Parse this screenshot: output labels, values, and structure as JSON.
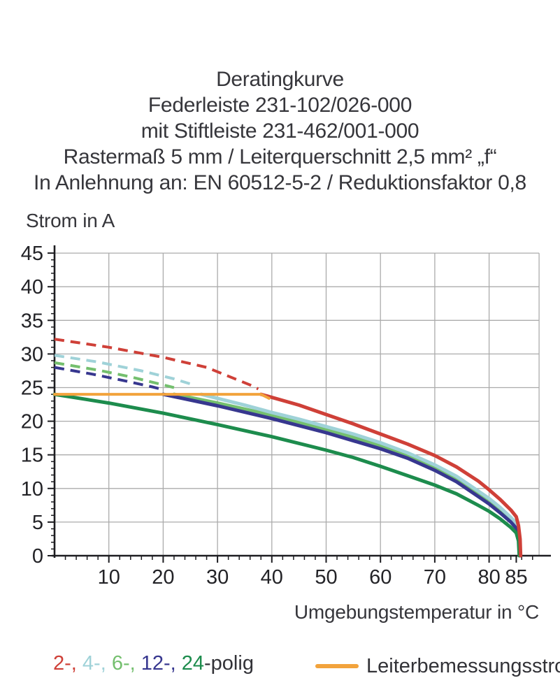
{
  "header": {
    "title_lines": [
      "Deratingkurve",
      "Federleiste 231-102/026-000",
      "mit Stiftleiste 231-462/001-000",
      "Rastermaß 5 mm / Leiterquerschnitt 2,5 mm² „f“",
      "In Anlehnung an: EN 60512-5-2 / Reduktionsfaktor 0,8"
    ]
  },
  "legend": {
    "poles": [
      {
        "text": "2-, ",
        "color": "#cf4038"
      },
      {
        "text": "4-, ",
        "color": "#9fd2d8"
      },
      {
        "text": "6-, ",
        "color": "#74bf6e"
      },
      {
        "text": "12-, ",
        "color": "#37378f"
      },
      {
        "text": "24",
        "color": "#1d8c4d"
      }
    ],
    "poles_suffix": "-polig",
    "rated_current": {
      "label": "Leiterbemessungsstrom",
      "color": "#f2a33c"
    }
  },
  "chart_data": {
    "type": "line",
    "title": "Deratingkurve",
    "xlabel": "Umgebungstemperatur in °C",
    "ylabel": "Strom in A",
    "xlim": [
      0,
      89.2
    ],
    "ylim": [
      0,
      45
    ],
    "x_ticks_major": [
      10,
      20,
      30,
      40,
      50,
      60,
      70,
      80,
      85
    ],
    "x_gridlines": [
      10,
      20,
      30,
      40,
      50,
      60,
      70,
      80
    ],
    "y_ticks_major": [
      0,
      5,
      10,
      15,
      20,
      25,
      30,
      35,
      40,
      45
    ],
    "y_gridlines": [
      5,
      10,
      15,
      20,
      25,
      30,
      35,
      40,
      45
    ],
    "grid": true,
    "legend_position": "bottom",
    "style": {
      "grid_color": "#ababab",
      "axis_color": "#1d1d21"
    },
    "series": [
      {
        "name": "2-polig-unreduziert",
        "color": "#cf4038",
        "dashed": true,
        "width": 4,
        "points": [
          [
            0,
            32.2
          ],
          [
            10,
            31.0
          ],
          [
            20,
            29.5
          ],
          [
            28,
            28.0
          ],
          [
            36,
            25.4
          ],
          [
            37.5,
            24.8
          ]
        ]
      },
      {
        "name": "4-polig-unreduziert",
        "color": "#9fd2d8",
        "dashed": true,
        "width": 4,
        "points": [
          [
            0,
            29.8
          ],
          [
            8,
            28.8
          ],
          [
            16,
            27.5
          ],
          [
            22,
            26.3
          ],
          [
            26,
            25.3
          ]
        ]
      },
      {
        "name": "6-polig-unreduziert",
        "color": "#74bf6e",
        "dashed": true,
        "width": 4,
        "points": [
          [
            0,
            28.7
          ],
          [
            8,
            27.6
          ],
          [
            14,
            26.6
          ],
          [
            19,
            25.6
          ],
          [
            22,
            25.0
          ]
        ]
      },
      {
        "name": "12-polig-unreduziert",
        "color": "#37378f",
        "dashed": true,
        "width": 4,
        "points": [
          [
            0,
            28.0
          ],
          [
            7,
            27.0
          ],
          [
            13,
            26.0
          ],
          [
            18,
            25.1
          ],
          [
            20,
            24.7
          ]
        ]
      },
      {
        "name": "6-polig",
        "color": "#74bf6e",
        "dashed": false,
        "width": 5,
        "points": [
          [
            22,
            24
          ],
          [
            30,
            22.7
          ],
          [
            40,
            20.9
          ],
          [
            50,
            18.8
          ],
          [
            60,
            16.4
          ],
          [
            65,
            14.9
          ],
          [
            70,
            13.1
          ],
          [
            74,
            11.4
          ],
          [
            78,
            9.2
          ],
          [
            80,
            8.1
          ],
          [
            82,
            6.8
          ],
          [
            84,
            5.3
          ],
          [
            85,
            4.4
          ],
          [
            85.4,
            3.1
          ],
          [
            85.6,
            1.8
          ],
          [
            85.65,
            0
          ]
        ]
      },
      {
        "name": "4-polig",
        "color": "#9fd2d8",
        "dashed": false,
        "width": 5,
        "points": [
          [
            27,
            24
          ],
          [
            30,
            23.4
          ],
          [
            35,
            22.4
          ],
          [
            40,
            21.3
          ],
          [
            45,
            20.3
          ],
          [
            50,
            19.2
          ],
          [
            55,
            18.1
          ],
          [
            60,
            16.8
          ],
          [
            65,
            15.3
          ],
          [
            70,
            13.5
          ],
          [
            74,
            11.8
          ],
          [
            78,
            9.6
          ],
          [
            80,
            8.5
          ],
          [
            82,
            7.2
          ],
          [
            84,
            5.7
          ],
          [
            85,
            4.8
          ],
          [
            85.4,
            3.5
          ],
          [
            85.6,
            2.0
          ],
          [
            85.7,
            0
          ]
        ]
      },
      {
        "name": "12-polig",
        "color": "#37378f",
        "dashed": false,
        "width": 5,
        "points": [
          [
            20,
            24
          ],
          [
            30,
            22.3
          ],
          [
            40,
            20.4
          ],
          [
            50,
            18.3
          ],
          [
            60,
            15.9
          ],
          [
            65,
            14.5
          ],
          [
            70,
            12.7
          ],
          [
            74,
            11.0
          ],
          [
            78,
            8.8
          ],
          [
            80,
            7.7
          ],
          [
            82,
            6.4
          ],
          [
            84,
            5.0
          ],
          [
            85,
            4.1
          ],
          [
            85.4,
            2.8
          ],
          [
            85.6,
            1.6
          ],
          [
            85.62,
            0
          ]
        ]
      },
      {
        "name": "24-polig",
        "color": "#1d8c4d",
        "dashed": false,
        "width": 5,
        "points": [
          [
            0,
            24
          ],
          [
            10,
            22.7
          ],
          [
            20,
            21.2
          ],
          [
            30,
            19.5
          ],
          [
            40,
            17.7
          ],
          [
            50,
            15.7
          ],
          [
            55,
            14.6
          ],
          [
            60,
            13.3
          ],
          [
            65,
            11.9
          ],
          [
            70,
            10.5
          ],
          [
            74,
            9.2
          ],
          [
            78,
            7.5
          ],
          [
            80,
            6.6
          ],
          [
            82,
            5.5
          ],
          [
            84,
            4.2
          ],
          [
            85,
            3.4
          ],
          [
            85.4,
            2.2
          ],
          [
            85.55,
            0
          ]
        ]
      },
      {
        "name": "2-polig",
        "color": "#cf4038",
        "dashed": false,
        "width": 5,
        "points": [
          [
            38,
            24
          ],
          [
            45,
            22.4
          ],
          [
            50,
            21.0
          ],
          [
            55,
            19.6
          ],
          [
            60,
            18.1
          ],
          [
            65,
            16.6
          ],
          [
            70,
            14.9
          ],
          [
            74,
            13.2
          ],
          [
            78,
            11.1
          ],
          [
            80,
            9.8
          ],
          [
            82,
            8.4
          ],
          [
            84,
            6.8
          ],
          [
            85,
            5.8
          ],
          [
            85.4,
            4.5
          ],
          [
            85.7,
            2.5
          ],
          [
            85.8,
            0
          ]
        ]
      },
      {
        "name": "Leiterbemessungsstrom",
        "color": "#f2a33c",
        "dashed": false,
        "width": 4,
        "points": [
          [
            0,
            24
          ],
          [
            38,
            24
          ],
          [
            39.5,
            23.4
          ]
        ]
      }
    ]
  }
}
